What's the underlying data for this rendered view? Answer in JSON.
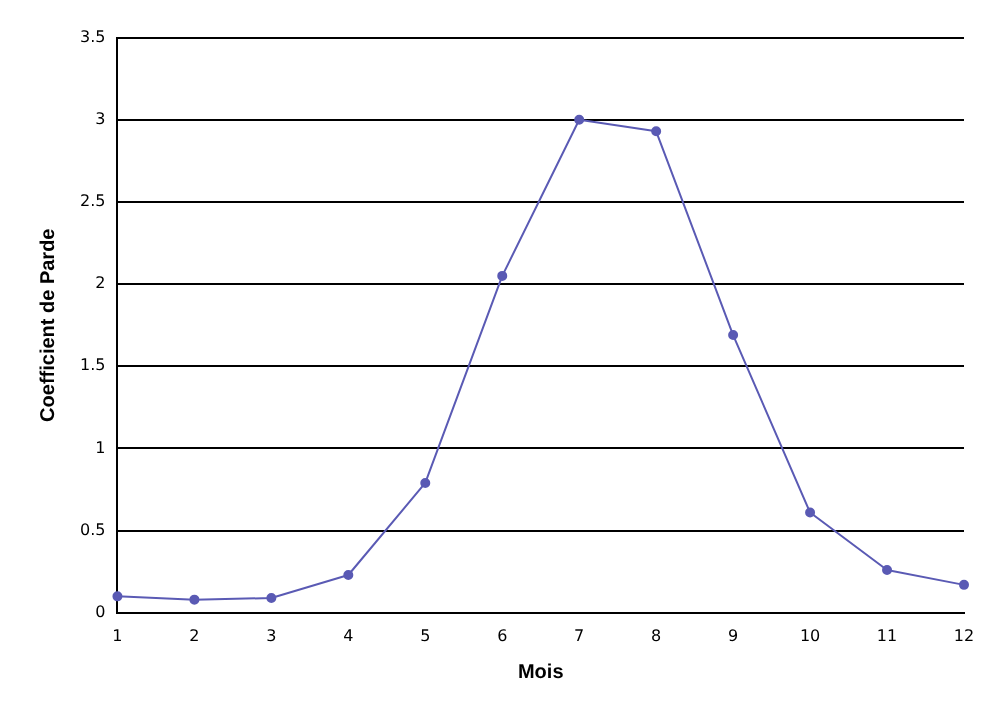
{
  "chart_data": {
    "type": "line",
    "xlabel": "Mois",
    "ylabel": "Coefficient de Parde",
    "x": [
      1,
      2,
      3,
      4,
      5,
      6,
      7,
      8,
      9,
      10,
      11,
      12
    ],
    "series": [
      {
        "color": "#5a5ab4",
        "values": [
          0.1,
          0.08,
          0.09,
          0.23,
          0.79,
          2.05,
          3.0,
          2.93,
          1.69,
          0.61,
          0.26,
          0.17
        ]
      }
    ],
    "xlim": [
      1,
      12
    ],
    "xticks": [
      1,
      2,
      3,
      4,
      5,
      6,
      7,
      8,
      9,
      10,
      11,
      12
    ],
    "ylim": [
      0,
      3.5
    ],
    "yticks": [
      0,
      0.5,
      1,
      1.5,
      2,
      2.5,
      3,
      3.5
    ],
    "grid": "y",
    "legend": false,
    "marker": "circle",
    "line_style": "solid"
  }
}
